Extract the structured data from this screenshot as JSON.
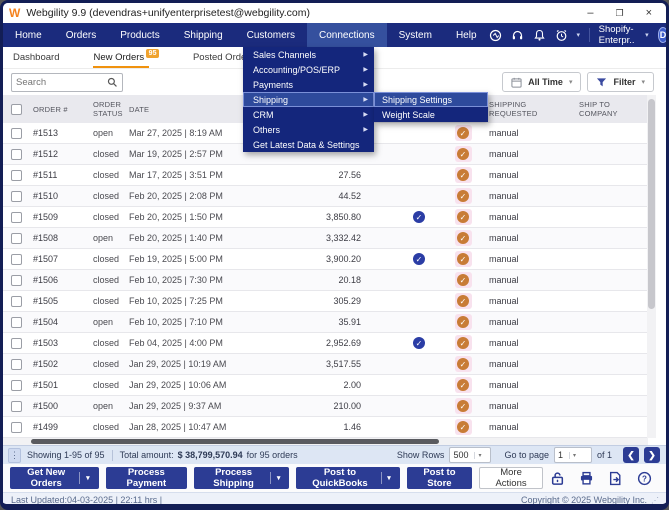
{
  "window": {
    "title": "Webgility 9.9 (devendras+unifyenterprisetest@webgility.com)",
    "logo_text": "W",
    "controls": {
      "minimize": "–",
      "maximize": "❐",
      "close": "×"
    }
  },
  "nav": {
    "items": [
      {
        "label": "Home",
        "active": false
      },
      {
        "label": "Orders",
        "active": false
      },
      {
        "label": "Products",
        "active": false
      },
      {
        "label": "Shipping",
        "active": false
      },
      {
        "label": "Customers",
        "active": false
      },
      {
        "label": "Connections",
        "active": true
      },
      {
        "label": "System",
        "active": false
      },
      {
        "label": "Help",
        "active": false
      }
    ],
    "store_selector": "Shopify-Enterpr..",
    "avatar_initial": "D"
  },
  "tabs": [
    {
      "label": "Dashboard",
      "badge": "",
      "active": false
    },
    {
      "label": "New Orders",
      "badge": "95",
      "active": true
    },
    {
      "label": "Posted Orders",
      "badge": "4",
      "active": false
    },
    {
      "label": "Arc",
      "badge": "",
      "active": false
    }
  ],
  "toolbar": {
    "search_placeholder": "Search",
    "date_filter_label": "All Time",
    "filter_label": "Filter"
  },
  "menu": {
    "items": [
      {
        "label": "Sales Channels",
        "has_submenu": true,
        "highlighted": false
      },
      {
        "label": "Accounting/POS/ERP",
        "has_submenu": true,
        "highlighted": false
      },
      {
        "label": "Payments",
        "has_submenu": true,
        "highlighted": false
      },
      {
        "label": "Shipping",
        "has_submenu": true,
        "highlighted": true
      },
      {
        "label": "CRM",
        "has_submenu": true,
        "highlighted": false
      },
      {
        "label": "Others",
        "has_submenu": true,
        "highlighted": false
      },
      {
        "label": "Get Latest Data & Settings",
        "has_submenu": false,
        "highlighted": false
      }
    ],
    "submenu": [
      {
        "label": "Shipping Settings",
        "highlighted": true
      },
      {
        "label": "Weight Scale",
        "highlighted": false
      }
    ]
  },
  "table": {
    "headers": {
      "order": "ORDER #",
      "status": "ORDER STATUS",
      "date": "DATE",
      "shipping_requested": "SHIPPING REQUESTED",
      "ship_to_company": "SHIP TO COMPANY"
    },
    "rows": [
      {
        "order": "#1513",
        "status": "open",
        "date": "Mar 27, 2025 | 8:19 AM",
        "amount": "",
        "payment_icon": false,
        "posted_icon": true,
        "shipping_requested": "manual"
      },
      {
        "order": "#1512",
        "status": "closed",
        "date": "Mar 19, 2025 | 2:57 PM",
        "amount": "",
        "payment_icon": false,
        "posted_icon": true,
        "shipping_requested": "manual"
      },
      {
        "order": "#1511",
        "status": "closed",
        "date": "Mar 17, 2025 | 3:51 PM",
        "amount": "27.56",
        "payment_icon": false,
        "posted_icon": true,
        "shipping_requested": "manual"
      },
      {
        "order": "#1510",
        "status": "closed",
        "date": "Feb 20, 2025 | 2:08 PM",
        "amount": "44.52",
        "payment_icon": false,
        "posted_icon": true,
        "shipping_requested": "manual"
      },
      {
        "order": "#1509",
        "status": "closed",
        "date": "Feb 20, 2025 | 1:50 PM",
        "amount": "3,850.80",
        "payment_icon": true,
        "posted_icon": true,
        "shipping_requested": "manual"
      },
      {
        "order": "#1508",
        "status": "open",
        "date": "Feb 20, 2025 | 1:40 PM",
        "amount": "3,332.42",
        "payment_icon": false,
        "posted_icon": true,
        "shipping_requested": "manual"
      },
      {
        "order": "#1507",
        "status": "closed",
        "date": "Feb 19, 2025 | 5:00 PM",
        "amount": "3,900.20",
        "payment_icon": true,
        "posted_icon": true,
        "shipping_requested": "manual"
      },
      {
        "order": "#1506",
        "status": "closed",
        "date": "Feb 10, 2025 | 7:30 PM",
        "amount": "20.18",
        "payment_icon": false,
        "posted_icon": true,
        "shipping_requested": "manual"
      },
      {
        "order": "#1505",
        "status": "closed",
        "date": "Feb 10, 2025 | 7:25 PM",
        "amount": "305.29",
        "payment_icon": false,
        "posted_icon": true,
        "shipping_requested": "manual"
      },
      {
        "order": "#1504",
        "status": "open",
        "date": "Feb 10, 2025 | 7:10 PM",
        "amount": "35.91",
        "payment_icon": false,
        "posted_icon": true,
        "shipping_requested": "manual"
      },
      {
        "order": "#1503",
        "status": "closed",
        "date": "Feb 04, 2025 | 4:00 PM",
        "amount": "2,952.69",
        "payment_icon": true,
        "posted_icon": true,
        "shipping_requested": "manual"
      },
      {
        "order": "#1502",
        "status": "closed",
        "date": "Jan 29, 2025 | 10:19 AM",
        "amount": "3,517.55",
        "payment_icon": false,
        "posted_icon": true,
        "shipping_requested": "manual"
      },
      {
        "order": "#1501",
        "status": "closed",
        "date": "Jan 29, 2025 | 10:06 AM",
        "amount": "2.00",
        "payment_icon": false,
        "posted_icon": true,
        "shipping_requested": "manual"
      },
      {
        "order": "#1500",
        "status": "open",
        "date": "Jan 29, 2025 | 9:37 AM",
        "amount": "210.00",
        "payment_icon": false,
        "posted_icon": true,
        "shipping_requested": "manual"
      },
      {
        "order": "#1499",
        "status": "closed",
        "date": "Jan 28, 2025 | 10:47 AM",
        "amount": "1.46",
        "payment_icon": false,
        "posted_icon": true,
        "shipping_requested": "manual"
      }
    ]
  },
  "pagination": {
    "showing": "Showing 1-95 of 95",
    "total_label": "Total amount:",
    "total_amount": "$ 38,799,570.94",
    "total_suffix": "for 95 orders",
    "show_rows_label": "Show Rows",
    "show_rows_value": "500",
    "goto_label": "Go to page",
    "goto_value": "1",
    "of_label": "of 1",
    "prev": "❮",
    "next": "❯"
  },
  "actions": {
    "buttons": [
      {
        "label": "Get New Orders",
        "caret": true,
        "style": "primary"
      },
      {
        "label": "Process Payment",
        "caret": false,
        "style": "primary"
      },
      {
        "label": "Process Shipping",
        "caret": true,
        "style": "primary"
      },
      {
        "label": "Post to QuickBooks",
        "caret": true,
        "style": "primary"
      },
      {
        "label": "Post to Store",
        "caret": false,
        "style": "primary"
      },
      {
        "label": "More Actions",
        "caret": false,
        "style": "secondary"
      }
    ]
  },
  "footer": {
    "last_updated": "Last Updated:04-03-2025 | 22:11 hrs |",
    "copyright": "Copyright © 2025 Webgility Inc."
  },
  "colors": {
    "navy": "#1b2b7d",
    "menu_navy": "#14267c",
    "highlight_blue": "#2e4a9c",
    "accent_orange": "#f0a32e",
    "posted_orange": "#c87c36",
    "payment_blue": "#2b3da5"
  }
}
